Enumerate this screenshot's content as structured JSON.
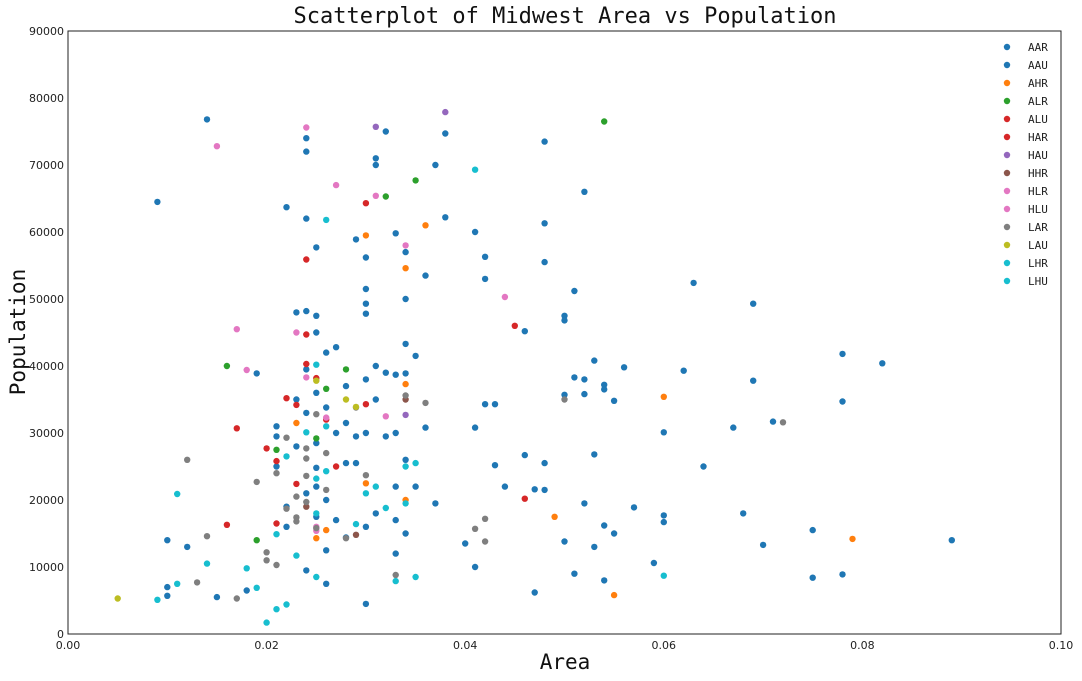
{
  "chart_data": {
    "type": "scatter",
    "title": "Scatterplot of Midwest Area vs Population",
    "xlabel": "Area",
    "ylabel": "Population",
    "xlim": [
      0.0,
      0.1
    ],
    "ylim": [
      0,
      90000
    ],
    "xticks": [
      "0.00",
      "0.02",
      "0.04",
      "0.06",
      "0.08",
      "0.10"
    ],
    "yticks": [
      "0",
      "10000",
      "20000",
      "30000",
      "40000",
      "50000",
      "60000",
      "70000",
      "80000",
      "90000"
    ],
    "grid": false,
    "legend_position": "top-right",
    "series": [
      {
        "name": "AAR",
        "color": "#1f77b4",
        "points": [
          [
            0.009,
            64500
          ],
          [
            0.014,
            76800
          ],
          [
            0.01,
            14000
          ],
          [
            0.01,
            7000
          ],
          [
            0.012,
            13000
          ],
          [
            0.015,
            5500
          ],
          [
            0.018,
            6500
          ],
          [
            0.019,
            38900
          ],
          [
            0.021,
            31000
          ],
          [
            0.021,
            25000
          ],
          [
            0.022,
            63700
          ],
          [
            0.022,
            19000
          ],
          [
            0.023,
            48000
          ],
          [
            0.023,
            35000
          ],
          [
            0.023,
            28000
          ],
          [
            0.024,
            74000
          ],
          [
            0.024,
            72000
          ],
          [
            0.024,
            62000
          ],
          [
            0.024,
            39500
          ],
          [
            0.024,
            33000
          ],
          [
            0.024,
            21000
          ],
          [
            0.025,
            57700
          ],
          [
            0.025,
            47500
          ],
          [
            0.025,
            45000
          ],
          [
            0.025,
            36000
          ],
          [
            0.025,
            28500
          ],
          [
            0.025,
            22000
          ],
          [
            0.025,
            17500
          ],
          [
            0.026,
            42000
          ],
          [
            0.026,
            33800
          ],
          [
            0.026,
            20000
          ],
          [
            0.026,
            12500
          ],
          [
            0.027,
            42800
          ],
          [
            0.027,
            30000
          ],
          [
            0.027,
            17000
          ],
          [
            0.028,
            37000
          ],
          [
            0.028,
            31500
          ],
          [
            0.028,
            25500
          ],
          [
            0.028,
            14400
          ],
          [
            0.029,
            58900
          ],
          [
            0.029,
            29500
          ],
          [
            0.029,
            25500
          ],
          [
            0.03,
            56200
          ],
          [
            0.03,
            51500
          ],
          [
            0.03,
            49300
          ],
          [
            0.03,
            47800
          ],
          [
            0.03,
            38000
          ],
          [
            0.03,
            30000
          ],
          [
            0.03,
            16000
          ],
          [
            0.03,
            4500
          ],
          [
            0.031,
            71000
          ],
          [
            0.031,
            70000
          ],
          [
            0.031,
            40000
          ],
          [
            0.031,
            35000
          ],
          [
            0.031,
            18000
          ],
          [
            0.032,
            75000
          ],
          [
            0.032,
            39000
          ],
          [
            0.032,
            29500
          ],
          [
            0.033,
            59800
          ],
          [
            0.033,
            38700
          ],
          [
            0.033,
            30000
          ],
          [
            0.033,
            22000
          ],
          [
            0.033,
            17000
          ],
          [
            0.033,
            12000
          ],
          [
            0.034,
            57000
          ],
          [
            0.034,
            50000
          ],
          [
            0.034,
            43300
          ],
          [
            0.034,
            38900
          ],
          [
            0.034,
            26000
          ],
          [
            0.034,
            15000
          ],
          [
            0.035,
            41500
          ],
          [
            0.035,
            22000
          ],
          [
            0.036,
            53500
          ],
          [
            0.036,
            30800
          ],
          [
            0.037,
            70000
          ],
          [
            0.037,
            19500
          ],
          [
            0.038,
            74700
          ],
          [
            0.038,
            62200
          ],
          [
            0.04,
            13500
          ],
          [
            0.041,
            60000
          ],
          [
            0.041,
            30800
          ],
          [
            0.041,
            10000
          ],
          [
            0.042,
            56300
          ],
          [
            0.042,
            53000
          ],
          [
            0.042,
            34300
          ],
          [
            0.043,
            34300
          ],
          [
            0.043,
            25200
          ],
          [
            0.044,
            22000
          ],
          [
            0.046,
            45200
          ],
          [
            0.046,
            26700
          ],
          [
            0.047,
            21600
          ],
          [
            0.047,
            6200
          ],
          [
            0.048,
            73500
          ],
          [
            0.048,
            61300
          ],
          [
            0.048,
            55500
          ],
          [
            0.048,
            25500
          ],
          [
            0.048,
            21500
          ],
          [
            0.05,
            47500
          ],
          [
            0.05,
            46800
          ],
          [
            0.05,
            35700
          ],
          [
            0.05,
            13800
          ],
          [
            0.051,
            51200
          ],
          [
            0.051,
            38300
          ],
          [
            0.051,
            9000
          ],
          [
            0.052,
            66000
          ],
          [
            0.052,
            38000
          ],
          [
            0.052,
            35800
          ],
          [
            0.052,
            19500
          ],
          [
            0.053,
            40800
          ],
          [
            0.053,
            26800
          ],
          [
            0.053,
            13000
          ],
          [
            0.054,
            37200
          ],
          [
            0.054,
            36500
          ],
          [
            0.054,
            16200
          ],
          [
            0.054,
            8000
          ],
          [
            0.055,
            34800
          ],
          [
            0.055,
            15000
          ],
          [
            0.056,
            39800
          ],
          [
            0.057,
            18900
          ],
          [
            0.059,
            10600
          ],
          [
            0.06,
            30100
          ],
          [
            0.06,
            17700
          ],
          [
            0.06,
            16700
          ],
          [
            0.062,
            39300
          ],
          [
            0.063,
            52400
          ],
          [
            0.064,
            25000
          ],
          [
            0.067,
            30800
          ],
          [
            0.068,
            18000
          ],
          [
            0.069,
            49300
          ],
          [
            0.069,
            37800
          ],
          [
            0.07,
            13300
          ],
          [
            0.071,
            31700
          ],
          [
            0.075,
            15500
          ],
          [
            0.075,
            8400
          ],
          [
            0.078,
            41800
          ],
          [
            0.078,
            34700
          ],
          [
            0.078,
            8900
          ],
          [
            0.082,
            40400
          ],
          [
            0.089,
            14000
          ]
        ]
      },
      {
        "name": "AAU",
        "color": "#1f77b4",
        "points": [
          [
            0.01,
            5700
          ],
          [
            0.021,
            29500
          ],
          [
            0.022,
            16000
          ],
          [
            0.024,
            48200
          ],
          [
            0.024,
            9500
          ],
          [
            0.025,
            24800
          ],
          [
            0.026,
            7500
          ]
        ]
      },
      {
        "name": "AHR",
        "color": "#ff7f0e",
        "points": [
          [
            0.023,
            31500
          ],
          [
            0.025,
            14300
          ],
          [
            0.026,
            15500
          ],
          [
            0.03,
            59500
          ],
          [
            0.03,
            22500
          ],
          [
            0.034,
            54600
          ],
          [
            0.034,
            37300
          ],
          [
            0.034,
            20000
          ],
          [
            0.036,
            61000
          ],
          [
            0.049,
            17500
          ],
          [
            0.055,
            5800
          ],
          [
            0.06,
            35400
          ],
          [
            0.079,
            14200
          ]
        ]
      },
      {
        "name": "ALR",
        "color": "#2ca02c",
        "points": [
          [
            0.016,
            40000
          ],
          [
            0.019,
            14000
          ],
          [
            0.021,
            27500
          ],
          [
            0.025,
            29200
          ],
          [
            0.026,
            36600
          ],
          [
            0.028,
            39500
          ],
          [
            0.032,
            65300
          ],
          [
            0.035,
            67700
          ],
          [
            0.054,
            76500
          ]
        ]
      },
      {
        "name": "ALU",
        "color": "#d62728",
        "points": [
          [
            0.016,
            16300
          ],
          [
            0.017,
            30700
          ],
          [
            0.02,
            27700
          ]
        ]
      },
      {
        "name": "HAR",
        "color": "#d62728",
        "points": [
          [
            0.021,
            16500
          ],
          [
            0.021,
            25800
          ],
          [
            0.022,
            35200
          ],
          [
            0.023,
            22400
          ],
          [
            0.023,
            34200
          ],
          [
            0.024,
            55900
          ],
          [
            0.024,
            44700
          ],
          [
            0.024,
            40300
          ],
          [
            0.025,
            38200
          ],
          [
            0.026,
            32000
          ],
          [
            0.027,
            25000
          ],
          [
            0.03,
            64300
          ],
          [
            0.03,
            34300
          ],
          [
            0.045,
            46000
          ],
          [
            0.046,
            20200
          ]
        ]
      },
      {
        "name": "HAU",
        "color": "#9467bd",
        "points": [
          [
            0.031,
            75700
          ],
          [
            0.034,
            32700
          ],
          [
            0.038,
            77900
          ]
        ]
      },
      {
        "name": "HHR",
        "color": "#8c564b",
        "points": [
          [
            0.024,
            19000
          ],
          [
            0.029,
            14800
          ],
          [
            0.034,
            35000
          ]
        ]
      },
      {
        "name": "HLR",
        "color": "#e377c2",
        "points": [
          [
            0.015,
            72800
          ],
          [
            0.017,
            45500
          ],
          [
            0.018,
            39400
          ],
          [
            0.023,
            45000
          ],
          [
            0.024,
            75600
          ],
          [
            0.024,
            38300
          ],
          [
            0.025,
            16000
          ],
          [
            0.027,
            67000
          ],
          [
            0.031,
            65400
          ],
          [
            0.032,
            32500
          ],
          [
            0.034,
            58000
          ],
          [
            0.044,
            50300
          ]
        ]
      },
      {
        "name": "HLU",
        "color": "#e377c2",
        "points": [
          [
            0.025,
            15400
          ],
          [
            0.026,
            32300
          ]
        ]
      },
      {
        "name": "LAR",
        "color": "#7f7f7f",
        "points": [
          [
            0.012,
            26000
          ],
          [
            0.013,
            7700
          ],
          [
            0.014,
            14600
          ],
          [
            0.017,
            5300
          ],
          [
            0.019,
            22700
          ],
          [
            0.02,
            11000
          ],
          [
            0.02,
            12200
          ],
          [
            0.021,
            10300
          ],
          [
            0.021,
            24000
          ],
          [
            0.022,
            29300
          ],
          [
            0.022,
            18700
          ],
          [
            0.023,
            20500
          ],
          [
            0.023,
            16800
          ],
          [
            0.023,
            17400
          ],
          [
            0.024,
            23600
          ],
          [
            0.024,
            27700
          ],
          [
            0.024,
            26200
          ],
          [
            0.024,
            19700
          ],
          [
            0.025,
            32800
          ],
          [
            0.025,
            15800
          ],
          [
            0.026,
            21500
          ],
          [
            0.026,
            27000
          ],
          [
            0.028,
            14300
          ],
          [
            0.029,
            33800
          ],
          [
            0.03,
            23700
          ],
          [
            0.033,
            8800
          ],
          [
            0.034,
            35600
          ],
          [
            0.036,
            34500
          ],
          [
            0.041,
            15700
          ],
          [
            0.042,
            17200
          ],
          [
            0.042,
            13800
          ],
          [
            0.05,
            35000
          ],
          [
            0.072,
            31600
          ]
        ]
      },
      {
        "name": "LAU",
        "color": "#bcbd22",
        "points": [
          [
            0.005,
            5300
          ],
          [
            0.025,
            37800
          ],
          [
            0.028,
            35000
          ],
          [
            0.029,
            33900
          ]
        ]
      },
      {
        "name": "LHR",
        "color": "#17becf",
        "points": [
          [
            0.009,
            5100
          ],
          [
            0.011,
            7500
          ],
          [
            0.011,
            20900
          ],
          [
            0.014,
            10500
          ],
          [
            0.018,
            9800
          ],
          [
            0.019,
            6900
          ],
          [
            0.02,
            1700
          ],
          [
            0.021,
            3700
          ],
          [
            0.021,
            14900
          ],
          [
            0.022,
            4400
          ],
          [
            0.022,
            26500
          ],
          [
            0.023,
            11700
          ],
          [
            0.024,
            30100
          ],
          [
            0.025,
            8500
          ],
          [
            0.025,
            23200
          ],
          [
            0.025,
            40200
          ],
          [
            0.026,
            24300
          ],
          [
            0.026,
            31000
          ],
          [
            0.026,
            61800
          ],
          [
            0.029,
            16400
          ],
          [
            0.03,
            21000
          ],
          [
            0.032,
            18800
          ],
          [
            0.033,
            7900
          ],
          [
            0.034,
            25000
          ],
          [
            0.035,
            25500
          ],
          [
            0.035,
            8500
          ],
          [
            0.041,
            69300
          ],
          [
            0.06,
            8700
          ]
        ]
      },
      {
        "name": "LHU",
        "color": "#17becf",
        "points": [
          [
            0.025,
            18000
          ],
          [
            0.031,
            22000
          ],
          [
            0.034,
            19500
          ]
        ]
      }
    ]
  }
}
